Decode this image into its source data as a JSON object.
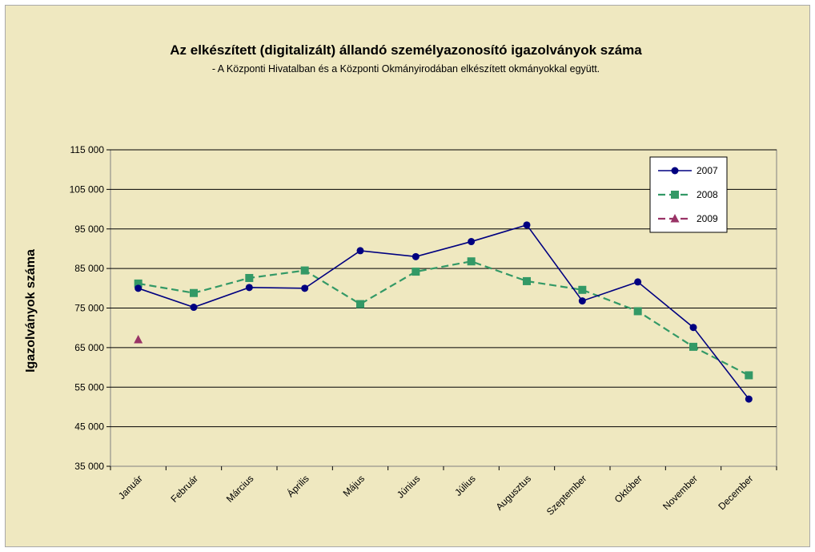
{
  "chart_data": {
    "type": "line",
    "title": "Az elkészített (digitalizált) állandó személyazonosító igazolványok száma",
    "subtitle": "- A Központi Hivatalban és a Központi Okmányirodában elkészített okmányokkal együtt.",
    "xlabel": "",
    "ylabel": "Igazolványok száma",
    "ylim": [
      35000,
      115000
    ],
    "yticks": [
      "35 000",
      "45 000",
      "55 000",
      "65 000",
      "75 000",
      "85 000",
      "95 000",
      "105 000",
      "115 000"
    ],
    "ytick_values": [
      35000,
      45000,
      55000,
      65000,
      75000,
      85000,
      95000,
      105000,
      115000
    ],
    "categories": [
      "Január",
      "Február",
      "Március",
      "Április",
      "Május",
      "Június",
      "Július",
      "Augusztus",
      "Szeptember",
      "Október",
      "November",
      "December"
    ],
    "grid": true,
    "legend_position": "top-right",
    "series": [
      {
        "name": "2007",
        "color": "#000080",
        "marker": "circle",
        "dash": "solid",
        "values": [
          80000,
          75200,
          80200,
          80000,
          89500,
          88000,
          91800,
          96000,
          76800,
          81600,
          70100,
          52000
        ]
      },
      {
        "name": "2008",
        "color": "#339966",
        "marker": "square",
        "dash": "dashed",
        "values": [
          81200,
          78800,
          82600,
          84500,
          76000,
          84200,
          86800,
          81800,
          79600,
          74200,
          65200,
          58000
        ]
      },
      {
        "name": "2009",
        "color": "#993366",
        "marker": "triangle",
        "dash": "dashed",
        "values": [
          67000,
          null,
          null,
          null,
          null,
          null,
          null,
          null,
          null,
          null,
          null,
          null
        ]
      }
    ]
  }
}
